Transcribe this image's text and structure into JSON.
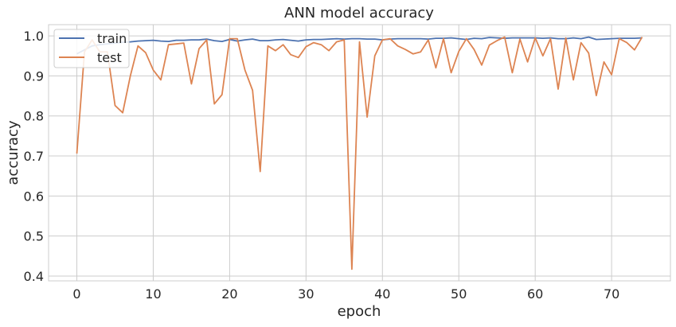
{
  "chart_data": {
    "type": "line",
    "title": "ANN model accuracy",
    "xlabel": "epoch",
    "ylabel": "accuracy",
    "xlim": [
      -3.7,
      77.7
    ],
    "ylim": [
      0.388,
      1.028
    ],
    "x_ticks": [
      0,
      10,
      20,
      30,
      40,
      50,
      60,
      70
    ],
    "y_ticks": [
      0.4,
      0.5,
      0.6,
      0.7,
      0.8,
      0.9,
      1.0
    ],
    "grid": true,
    "legend_position": "top-left",
    "series": [
      {
        "name": "train",
        "color": "#4c72b0",
        "values": [
          0.955,
          0.965,
          0.975,
          0.978,
          0.98,
          0.982,
          0.984,
          0.985,
          0.987,
          0.988,
          0.989,
          0.987,
          0.986,
          0.989,
          0.989,
          0.99,
          0.99,
          0.992,
          0.988,
          0.986,
          0.991,
          0.987,
          0.99,
          0.992,
          0.988,
          0.988,
          0.99,
          0.991,
          0.989,
          0.987,
          0.99,
          0.991,
          0.991,
          0.992,
          0.993,
          0.992,
          0.993,
          0.993,
          0.992,
          0.992,
          0.99,
          0.992,
          0.993,
          0.993,
          0.993,
          0.993,
          0.992,
          0.994,
          0.994,
          0.995,
          0.993,
          0.991,
          0.994,
          0.993,
          0.996,
          0.995,
          0.994,
          0.995,
          0.995,
          0.995,
          0.995,
          0.994,
          0.995,
          0.993,
          0.993,
          0.995,
          0.993,
          0.997,
          0.991,
          0.992,
          0.993,
          0.994,
          0.994,
          0.994,
          0.995
        ]
      },
      {
        "name": "test",
        "color": "#dd8452",
        "values": [
          0.706,
          0.96,
          0.99,
          0.96,
          0.96,
          0.826,
          0.808,
          0.9,
          0.975,
          0.958,
          0.915,
          0.89,
          0.978,
          0.98,
          0.982,
          0.88,
          0.968,
          0.99,
          0.83,
          0.853,
          0.993,
          0.993,
          0.915,
          0.864,
          0.661,
          0.975,
          0.963,
          0.978,
          0.953,
          0.946,
          0.973,
          0.983,
          0.978,
          0.963,
          0.985,
          0.99,
          0.417,
          0.985,
          0.797,
          0.95,
          0.99,
          0.993,
          0.975,
          0.966,
          0.955,
          0.96,
          0.99,
          0.92,
          0.993,
          0.908,
          0.961,
          0.993,
          0.966,
          0.927,
          0.977,
          0.988,
          0.997,
          0.908,
          0.992,
          0.935,
          0.995,
          0.95,
          0.993,
          0.867,
          0.995,
          0.89,
          0.983,
          0.957,
          0.851,
          0.935,
          0.903,
          0.993,
          0.983,
          0.965,
          0.997
        ]
      }
    ]
  }
}
